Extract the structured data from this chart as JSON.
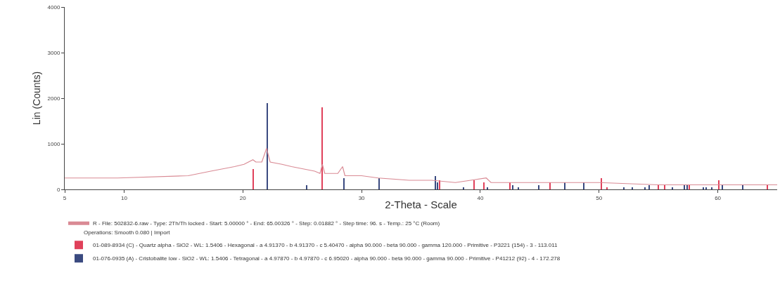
{
  "chart_data": {
    "type": "line",
    "xlabel": "2-Theta - Scale",
    "ylabel": "Lin (Counts)",
    "xlim": [
      5,
      65
    ],
    "xticks": [
      5,
      10,
      20,
      30,
      40,
      50,
      60
    ],
    "ylim": [
      0,
      4000
    ],
    "yticks": [
      0,
      1000,
      2000,
      3000,
      4000
    ],
    "legend": "bottom",
    "series": [
      {
        "name": "R - File: 502832-6.raw - Type: 2Th/Th locked - Start: 5.00000 ° - End: 65.00326 ° - Step: 0.01882 ° - Step time: 96. s - Temp.: 25 °C (Room)",
        "color": "#d98a94",
        "x": [
          5,
          9.45,
          15.4,
          17.3,
          19.3,
          20.1,
          20.85,
          21.1,
          21.6,
          22.0,
          22.3,
          23.3,
          24.1,
          26.05,
          26.5,
          26.7,
          26.9,
          28.0,
          28.4,
          28.6,
          30.0,
          31.4,
          34.0,
          35.9,
          37.9,
          40.5,
          40.9,
          45.8,
          50,
          55,
          60,
          65
        ],
        "values": [
          250,
          250,
          300,
          400,
          500,
          550,
          650,
          600,
          600,
          900,
          600,
          550,
          500,
          400,
          350,
          550,
          350,
          350,
          500,
          300,
          300,
          250,
          200,
          200,
          150,
          250,
          150,
          150,
          150,
          100,
          100,
          100
        ]
      },
      {
        "name": "01-089-8934 (C) - Quartz alpha - SiO2 - WL: 1.5406 - Hexagonal - a 4.91370 - b 4.91370 - c 5.40470 - alpha 90.000 - beta 90.000 - gamma 120.000 - Primitive - P3221 (154) - 3 - 113.011",
        "type": "bar",
        "color": "#e0405a",
        "x": [
          20.9,
          26.7,
          36.6,
          39.5,
          40.3,
          42.5,
          45.9,
          50.2,
          50.7,
          55.0,
          55.5,
          57.6,
          60.1,
          64.2
        ],
        "values": [
          450,
          1800,
          200,
          200,
          150,
          150,
          150,
          250,
          50,
          100,
          100,
          100,
          200,
          100
        ]
      },
      {
        "name": "01-076-0935 (A) - Cristobalite low - SiO2 - WL: 1.5406 - Tetragonal - a 4.97870 - b 4.97870 - c 6.95020 - alpha 90.000 - beta 90.000 - gamma 90.000 - Primitive - P41212 (92) - 4 - 172.278",
        "type": "bar",
        "color": "#3a4a80",
        "x": [
          22.05,
          25.4,
          28.5,
          31.5,
          36.2,
          36.4,
          38.6,
          40.6,
          42.75,
          43.2,
          44.9,
          47.1,
          48.7,
          52.1,
          52.8,
          53.85,
          54.2,
          56.2,
          57.2,
          57.4,
          58.8,
          59.0,
          59.5,
          60.4,
          62.1
        ],
        "values": [
          1900,
          100,
          250,
          250,
          300,
          150,
          50,
          50,
          100,
          50,
          100,
          150,
          150,
          50,
          50,
          50,
          100,
          50,
          100,
          100,
          50,
          50,
          50,
          100,
          100
        ]
      }
    ],
    "annotations": [
      "Operations: Smooth 0.080 | Import"
    ]
  }
}
